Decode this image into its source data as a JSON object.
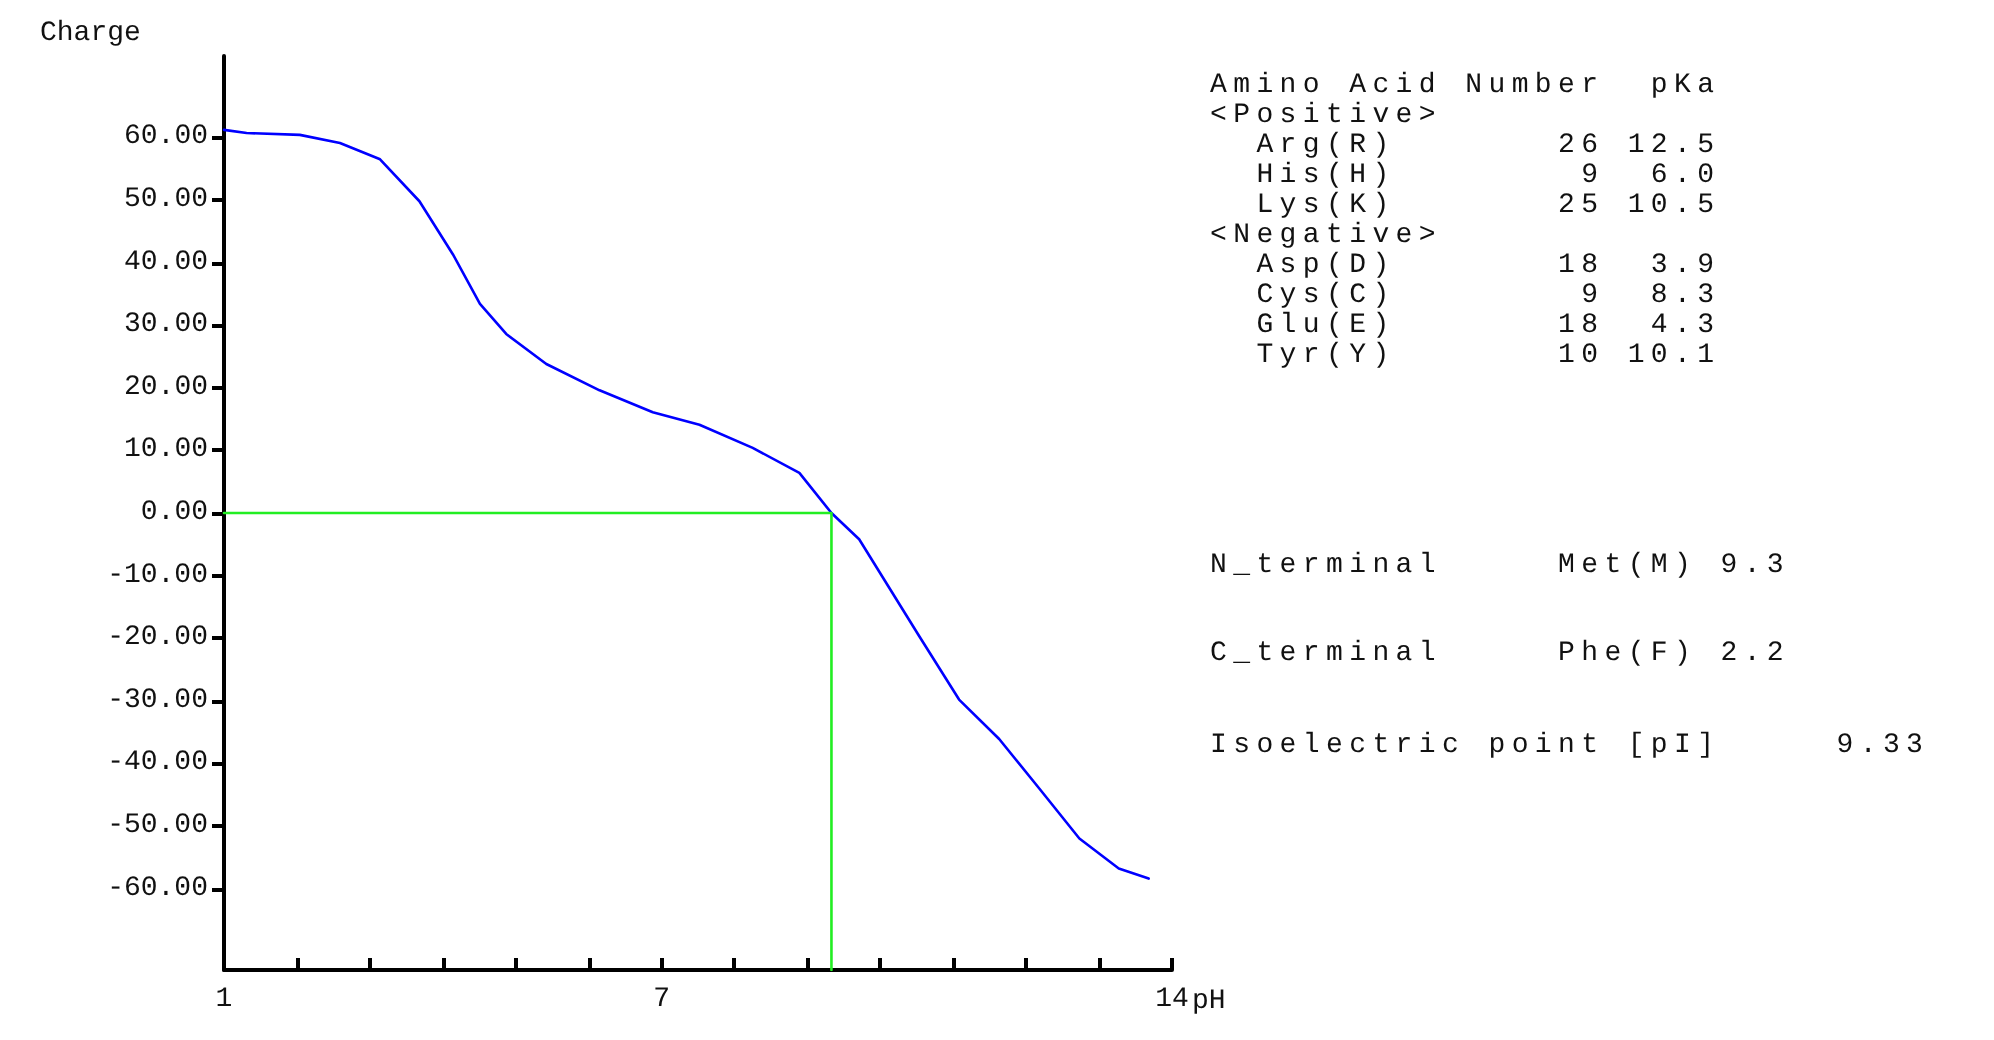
{
  "chart_data": {
    "type": "line",
    "ylabel": "Charge",
    "xlabel": "pH",
    "xlim": [
      1,
      14
    ],
    "ylim": [
      -73,
      73
    ],
    "xticks": [
      1,
      {
        "value": 2,
        "label": null
      },
      {
        "value": 3,
        "label": null
      },
      {
        "value": 4,
        "label": null
      },
      {
        "value": 5,
        "label": null
      },
      {
        "value": 6,
        "label": null
      },
      7,
      {
        "value": 8,
        "label": null
      },
      {
        "value": 9,
        "label": null
      },
      {
        "value": 10,
        "label": null
      },
      {
        "value": 11,
        "label": null
      },
      {
        "value": 12,
        "label": null
      },
      {
        "value": 13,
        "label": null
      },
      14
    ],
    "yticks": [
      {
        "value": -60,
        "label": "-60.00"
      },
      {
        "value": -50,
        "label": "-50.00"
      },
      {
        "value": -40,
        "label": "-40.00"
      },
      {
        "value": -30,
        "label": "-30.00"
      },
      {
        "value": -20,
        "label": "-20.00"
      },
      {
        "value": -10,
        "label": "-10.00"
      },
      {
        "value": 0,
        "label": "0.00"
      },
      {
        "value": 10,
        "label": "10.00"
      },
      {
        "value": 20,
        "label": "20.00"
      },
      {
        "value": 30,
        "label": "30.00"
      },
      {
        "value": 40,
        "label": "40.00"
      },
      {
        "value": 50,
        "label": "50.00"
      },
      {
        "value": 60,
        "label": "60.00"
      }
    ],
    "grid": false,
    "marker": "none",
    "series": [
      {
        "color": "#0000ff",
        "x": [
          1,
          1.31,
          2.04,
          2.59,
          3.14,
          3.68,
          4.14,
          4.51,
          4.87,
          5.42,
          6.15,
          6.88,
          7.52,
          8.25,
          8.89,
          9.33,
          9.71,
          10.53,
          11.08,
          11.63,
          12.18,
          12.73,
          13.27,
          13.68
        ],
        "values": [
          61.2,
          60.7,
          60.4,
          59.1,
          56.5,
          49.8,
          41.3,
          33.4,
          28.6,
          23.8,
          19.6,
          16.1,
          14.1,
          10.4,
          6.4,
          0,
          -4.2,
          -19.6,
          -29.8,
          -36.1,
          -44,
          -52,
          -56.8,
          -58.4
        ]
      },
      {
        "color": "#22ee22",
        "x": [
          1,
          9.33,
          9.33
        ],
        "values": [
          0,
          0,
          -73
        ]
      }
    ],
    "annotations": [
      "Amino Acid Number  pKa",
      "<Positive>",
      "  Arg(R)       26 12.5",
      "  His(H)        9  6.0",
      "  Lys(K)       25 10.5",
      "<Negative>",
      "  Asp(D)       18  3.9",
      "  Cys(C)        9  8.3",
      "  Glu(E)       18  4.3",
      "  Tyr(Y)       10 10.1",
      "N_terminal     Met(M) 9.3",
      "C_terminal     Phe(F) 2.2",
      "Isoelectric point [pI]     9.33"
    ]
  }
}
